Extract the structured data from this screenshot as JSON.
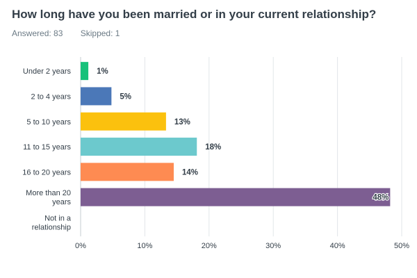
{
  "question": {
    "title": "How long have you been married or in your current relationship?",
    "answered": "Answered: 83",
    "skipped": "Skipped: 1"
  },
  "colors": {
    "grid": "#e2e6e9",
    "axis": "#c6ccd1",
    "label": "#333e48"
  },
  "chart_data": {
    "type": "bar",
    "orientation": "horizontal",
    "categories": [
      [
        "Under 2 years"
      ],
      [
        "2 to 4 years"
      ],
      [
        "5 to 10 years"
      ],
      [
        "11 to 15 years"
      ],
      [
        "16 to 20 years"
      ],
      [
        "More than 20",
        "years"
      ],
      [
        "Not in a",
        "relationship"
      ]
    ],
    "values": [
      1.2,
      4.8,
      13.3,
      18.1,
      14.5,
      48.2,
      0
    ],
    "value_labels": [
      "1%",
      "5%",
      "13%",
      "18%",
      "14%",
      "48%",
      ""
    ],
    "colors": [
      "#17c17a",
      "#4b78b8",
      "#fbc10e",
      "#6cc9cd",
      "#fe8b52",
      "#7d5e92",
      "#cccccc"
    ],
    "xlim": [
      0,
      50
    ],
    "xticks": [
      0,
      10,
      20,
      30,
      40,
      50
    ],
    "xtick_labels": [
      "0%",
      "10%",
      "20%",
      "30%",
      "40%",
      "50%"
    ],
    "grid": true,
    "legend": "none"
  }
}
